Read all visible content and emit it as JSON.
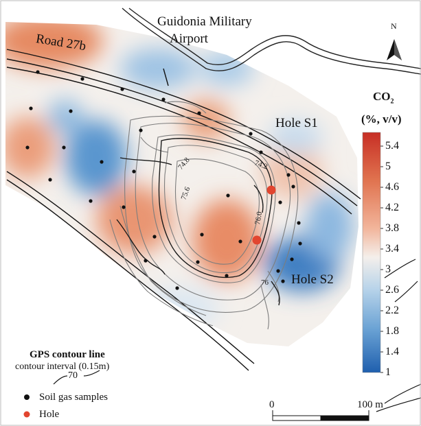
{
  "map": {
    "place_label": "Guidonia Military Airport",
    "place_line1": "Guidonia Military",
    "place_line2": "Airport",
    "road_label": "Road 27b",
    "north_label": "N",
    "holes": [
      {
        "label": "Hole S1"
      },
      {
        "label": "Hole S2"
      }
    ],
    "contour_labels": [
      "74.8",
      "75.6",
      "74.2",
      "76.0",
      "76"
    ]
  },
  "colorbar": {
    "title_main": "CO",
    "title_sub": "2",
    "units": "(%, v/v)",
    "ticks": [
      "5.4",
      "5",
      "4.6",
      "4.2",
      "3.8",
      "3.4",
      "3",
      "2.6",
      "2.2",
      "1.8",
      "1.4",
      "1"
    ],
    "min": 1,
    "max": 5.4,
    "low_color": "#2f6fb8",
    "mid_color": "#f3f1ee",
    "high_color": "#d13a2b"
  },
  "legend": {
    "contour_title": "GPS contour line",
    "contour_interval": "contour interval (0.15m)",
    "contour_example": "70",
    "samples_label": "Soil gas samples",
    "hole_label": "Hole",
    "sample_color": "#111111",
    "hole_color": "#e2452f"
  },
  "scale_bar": {
    "start_label": "0",
    "end_label": "100 m"
  }
}
